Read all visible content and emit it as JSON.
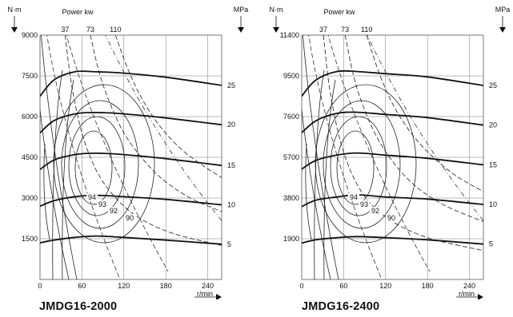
{
  "chart_data": [
    {
      "type": "line",
      "title": "JMDG16-2000",
      "xlabel": "r/min",
      "ylabel_left": "N·m",
      "ylabel_top": "Power kw",
      "ylabel_right": "MPa",
      "xlim": [
        0,
        260
      ],
      "ylim": [
        0,
        9000
      ],
      "x_ticks": [
        "0",
        "60",
        "120",
        "180",
        "240"
      ],
      "y_ticks": [
        "1500",
        "3000",
        "4500",
        "6000",
        "7500",
        "9000"
      ],
      "power_ticks": [
        "37",
        "73",
        "110"
      ],
      "pressure_ticks": [
        "5",
        "10",
        "15",
        "20",
        "25"
      ],
      "efficiency_labels": [
        "94",
        "93",
        "92",
        "90"
      ],
      "grid": true,
      "torque_curves": [
        {
          "label": "25",
          "x": [
            0,
            20,
            50,
            80,
            120,
            180,
            260
          ],
          "y": [
            6750,
            7350,
            7650,
            7650,
            7600,
            7450,
            7150
          ]
        },
        {
          "label": "20",
          "x": [
            0,
            20,
            50,
            80,
            120,
            180,
            260
          ],
          "y": [
            5400,
            5850,
            6100,
            6150,
            6100,
            5950,
            5700
          ]
        },
        {
          "label": "15",
          "x": [
            0,
            20,
            50,
            80,
            120,
            180,
            260
          ],
          "y": [
            4050,
            4400,
            4600,
            4650,
            4600,
            4450,
            4200
          ]
        },
        {
          "label": "10",
          "x": [
            0,
            20,
            50,
            80,
            120,
            180,
            260
          ],
          "y": [
            2700,
            2900,
            3050,
            3100,
            3050,
            2950,
            2750
          ]
        },
        {
          "label": "5",
          "x": [
            0,
            20,
            50,
            80,
            120,
            180,
            260
          ],
          "y": [
            1350,
            1450,
            1550,
            1600,
            1550,
            1450,
            1300
          ]
        }
      ],
      "power_curves": [
        {
          "label": "37",
          "x": [
            36,
            45,
            60,
            80,
            105,
            140,
            190,
            260
          ],
          "y": [
            9000,
            7200,
            5400,
            4050,
            3100,
            2300,
            1700,
            1250
          ]
        },
        {
          "label": "73",
          "x": [
            72,
            85,
            100,
            120,
            145,
            175,
            215,
            260
          ],
          "y": [
            9000,
            7600,
            6500,
            5400,
            4500,
            3700,
            3000,
            2500
          ]
        },
        {
          "label": "110",
          "x": [
            108,
            125,
            145,
            170,
            200,
            230,
            260
          ],
          "y": [
            9000,
            7800,
            6700,
            5700,
            4850,
            4250,
            3750
          ]
        }
      ]
    },
    {
      "type": "line",
      "title": "JMDG16-2400",
      "xlabel": "r/min",
      "ylabel_left": "N·m",
      "ylabel_top": "Power kw",
      "ylabel_right": "MPa",
      "xlim": [
        0,
        260
      ],
      "ylim": [
        0,
        11400
      ],
      "x_ticks": [
        "0",
        "60",
        "120",
        "180",
        "240"
      ],
      "y_ticks": [
        "1900",
        "3800",
        "5700",
        "7600",
        "9500",
        "11400"
      ],
      "power_ticks": [
        "37",
        "73",
        "110"
      ],
      "pressure_ticks": [
        "5",
        "10",
        "15",
        "20",
        "25"
      ],
      "efficiency_labels": [
        "94",
        "93",
        "92",
        "90"
      ],
      "grid": true,
      "torque_curves": [
        {
          "label": "25",
          "x": [
            0,
            20,
            50,
            80,
            120,
            180,
            260
          ],
          "y": [
            8550,
            9300,
            9700,
            9700,
            9600,
            9450,
            9050
          ]
        },
        {
          "label": "20",
          "x": [
            0,
            20,
            50,
            80,
            120,
            180,
            260
          ],
          "y": [
            6850,
            7400,
            7750,
            7800,
            7700,
            7550,
            7200
          ]
        },
        {
          "label": "15",
          "x": [
            0,
            20,
            50,
            80,
            120,
            180,
            260
          ],
          "y": [
            5150,
            5550,
            5800,
            5900,
            5800,
            5650,
            5350
          ]
        },
        {
          "label": "10",
          "x": [
            0,
            20,
            50,
            80,
            120,
            180,
            260
          ],
          "y": [
            3400,
            3700,
            3850,
            3950,
            3850,
            3750,
            3500
          ]
        },
        {
          "label": "5",
          "x": [
            0,
            20,
            50,
            80,
            120,
            180,
            260
          ],
          "y": [
            1700,
            1850,
            1950,
            2000,
            1950,
            1850,
            1650
          ]
        }
      ],
      "power_curves": [
        {
          "label": "37",
          "x": [
            31,
            40,
            55,
            75,
            100,
            135,
            185,
            260
          ],
          "y": [
            11400,
            8900,
            6500,
            4700,
            3500,
            2600,
            1900,
            1350
          ]
        },
        {
          "label": "73",
          "x": [
            62,
            75,
            90,
            110,
            135,
            165,
            205,
            260
          ],
          "y": [
            11400,
            9400,
            7900,
            6500,
            5300,
            4300,
            3450,
            2700
          ]
        },
        {
          "label": "110",
          "x": [
            93,
            110,
            130,
            155,
            185,
            220,
            260
          ],
          "y": [
            11400,
            9700,
            8200,
            6900,
            5800,
            4850,
            4100
          ]
        }
      ]
    }
  ]
}
